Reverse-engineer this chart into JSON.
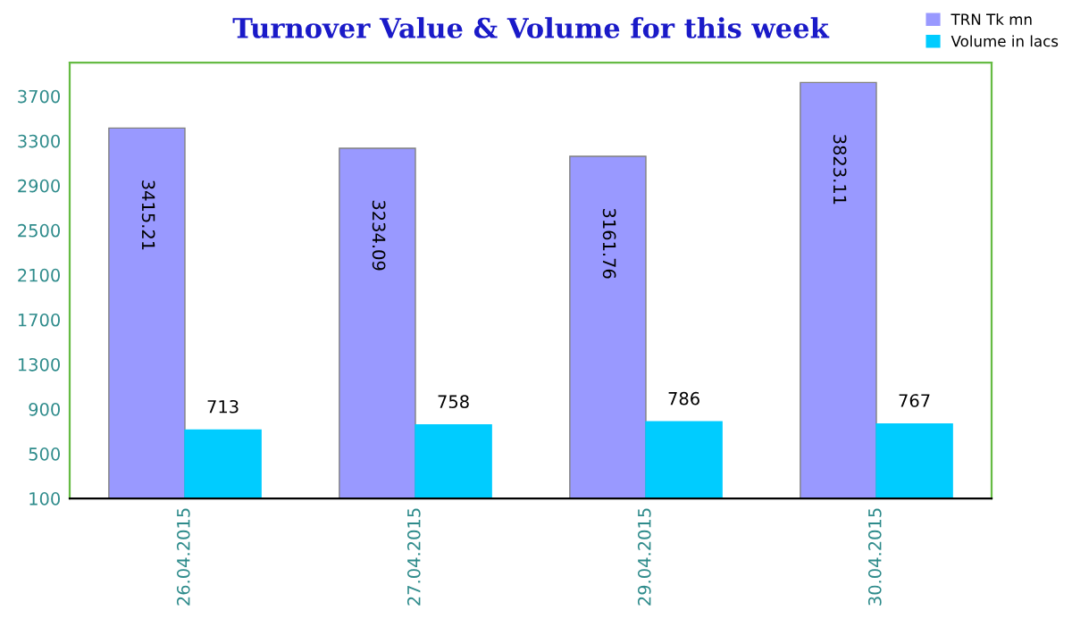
{
  "chart_data": {
    "type": "bar",
    "title": "Turnover Value & Volume for this week",
    "categories": [
      "26.04.2015",
      "27.04.2015",
      "29.04.2015",
      "30.04.2015"
    ],
    "series": [
      {
        "name": "TRN Tk mn",
        "color": "#9999ff",
        "values": [
          3415.21,
          3234.09,
          3161.76,
          3823.11
        ]
      },
      {
        "name": "Volume in lacs",
        "color": "#00ccff",
        "values": [
          713,
          758,
          786,
          767
        ]
      }
    ],
    "ylim": [
      100,
      4000
    ],
    "yticks": [
      100,
      500,
      900,
      1300,
      1700,
      2100,
      2500,
      2900,
      3300,
      3700
    ],
    "grid": false,
    "legend": "top right",
    "data_labels": true
  }
}
